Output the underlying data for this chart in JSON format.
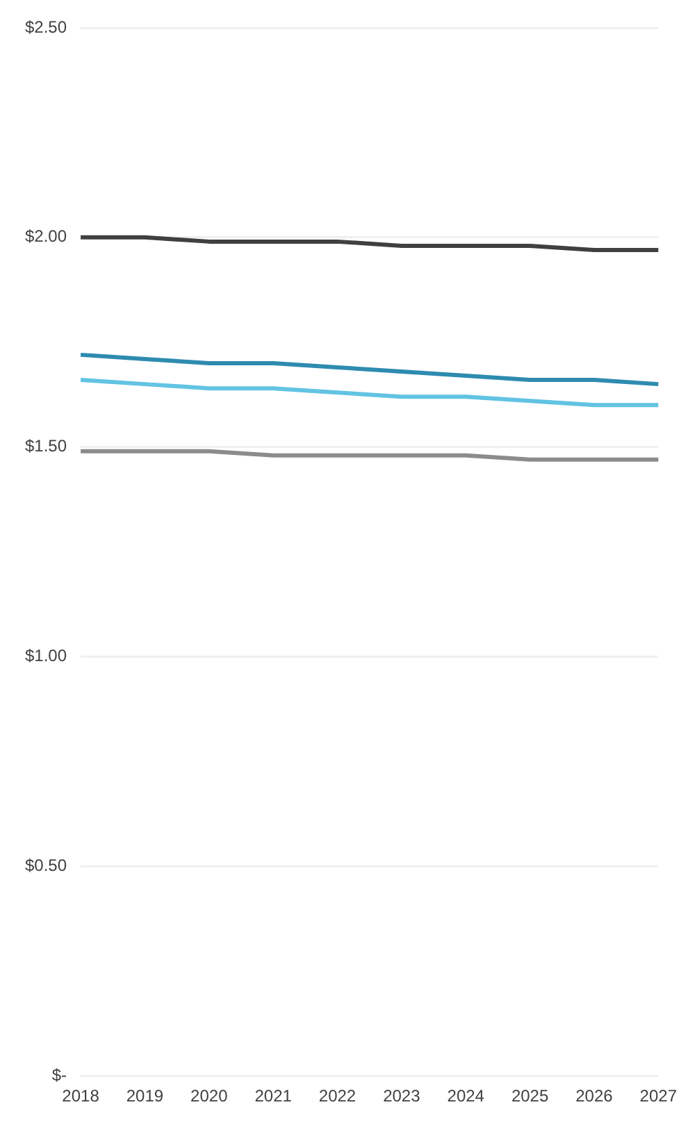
{
  "chart_data": {
    "type": "line",
    "categories": [
      "2018",
      "2019",
      "2020",
      "2021",
      "2022",
      "2023",
      "2024",
      "2025",
      "2026",
      "2027"
    ],
    "series": [
      {
        "color": "#404040",
        "values": [
          2.0,
          2.0,
          1.99,
          1.99,
          1.99,
          1.98,
          1.98,
          1.98,
          1.97,
          1.97
        ]
      },
      {
        "color": "#2e8bb0",
        "values": [
          1.72,
          1.71,
          1.7,
          1.7,
          1.69,
          1.68,
          1.67,
          1.66,
          1.66,
          1.65
        ]
      },
      {
        "color": "#62c3e3",
        "values": [
          1.66,
          1.65,
          1.64,
          1.64,
          1.63,
          1.62,
          1.62,
          1.61,
          1.6,
          1.6
        ]
      },
      {
        "color": "#8c8c8c",
        "values": [
          1.49,
          1.49,
          1.49,
          1.48,
          1.48,
          1.48,
          1.48,
          1.47,
          1.47,
          1.47
        ]
      }
    ],
    "ylim": [
      0,
      2.5
    ],
    "yticks": [
      {
        "value": 0,
        "label": "$-"
      },
      {
        "value": 0.5,
        "label": "$0.50"
      },
      {
        "value": 1,
        "label": "$1.00"
      },
      {
        "value": 1.5,
        "label": "$1.50"
      },
      {
        "value": 2,
        "label": "$2.00"
      },
      {
        "value": 2.5,
        "label": "$2.50"
      }
    ],
    "grid": "y",
    "legend": false,
    "marker": "none",
    "line_style": "solid"
  }
}
